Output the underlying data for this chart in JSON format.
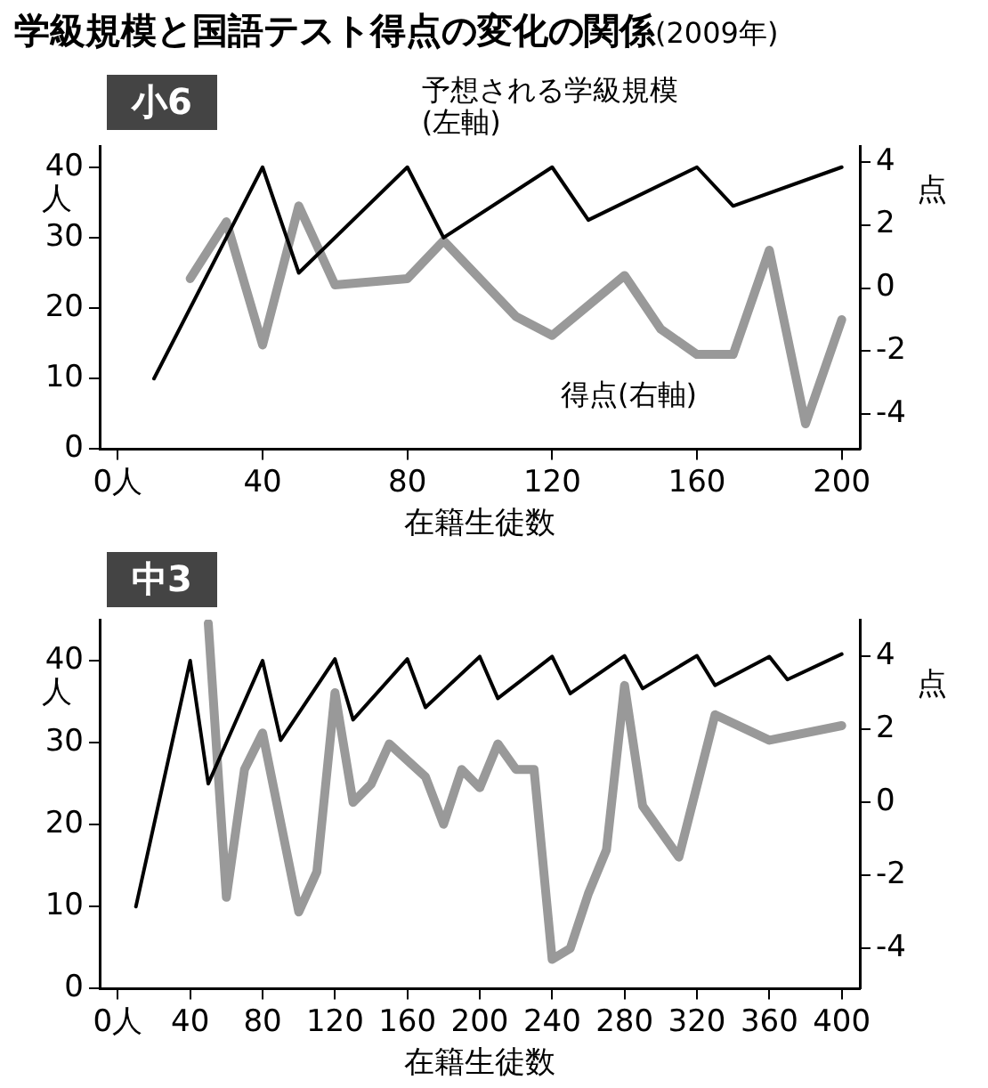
{
  "chart_data": [
    {
      "type": "line",
      "title": "学級規模と国語テスト得点の変化の関係",
      "subtitle": "(2009年)",
      "annotations": [
        "小6"
      ],
      "xlabel": "在籍生徒数",
      "ylabel": "人",
      "y2label": "点",
      "xlim": [
        -5,
        205
      ],
      "xticks": [
        {
          "value": 0,
          "label": "0人"
        },
        40,
        80,
        120,
        160,
        200
      ],
      "ylim": [
        0,
        43
      ],
      "yticks": [
        0,
        10,
        20,
        30,
        40
      ],
      "y2lim": [
        -5.1,
        4.5
      ],
      "y2ticks": [
        -4,
        -2,
        0,
        2,
        4
      ],
      "grid": false,
      "legend": false,
      "marker": "none",
      "line_style": "solid",
      "series": [
        {
          "name": "予想される学級規模(左軸)",
          "color": "#000000",
          "x": [
            10,
            40,
            50,
            80,
            90,
            120,
            130,
            160,
            170,
            200
          ],
          "values": [
            10,
            40,
            25,
            40,
            30,
            40,
            32.5,
            40,
            34.5,
            40
          ]
        },
        {
          "name": "得点(右軸)",
          "color": "#999999",
          "axis": "y2",
          "x": [
            20,
            30,
            40,
            50,
            60,
            80,
            90,
            110,
            120,
            140,
            150,
            160,
            170,
            180,
            190,
            200
          ],
          "values": [
            0.3,
            2.1,
            -1.8,
            2.6,
            0.1,
            0.3,
            1.5,
            -0.9,
            -1.5,
            0.4,
            -1.3,
            -2.1,
            -2.1,
            1.2,
            -4.3,
            -1.0
          ]
        }
      ]
    },
    {
      "type": "line",
      "title": "中3",
      "xlabel": "在籍生徒数",
      "ylabel": "人",
      "y2label": "点",
      "xlim": [
        -10,
        410
      ],
      "xticks": [
        {
          "value": 0,
          "label": "0人"
        },
        40,
        80,
        120,
        160,
        200,
        240,
        280,
        320,
        360,
        400
      ],
      "ylim": [
        0,
        45
      ],
      "yticks": [
        0,
        10,
        20,
        30,
        40
      ],
      "y2lim": [
        -5.1,
        5
      ],
      "y2ticks": [
        -4,
        -2,
        0,
        2,
        4
      ],
      "grid": false,
      "legend": false,
      "marker": "none",
      "line_style": "solid",
      "series": [
        {
          "color": "#000000",
          "x": [
            10,
            40,
            50,
            80,
            90,
            120,
            130,
            160,
            170,
            200,
            210,
            240,
            250,
            280,
            290,
            320,
            330,
            360,
            370,
            400
          ],
          "values": [
            10,
            40,
            25,
            40,
            30.3,
            40.2,
            32.8,
            40.2,
            34.3,
            40.5,
            35.4,
            40.5,
            36,
            40.6,
            36.6,
            40.6,
            37,
            40.5,
            37.7,
            40.8
          ]
        },
        {
          "color": "#999999",
          "axis": "y2",
          "x": [
            50,
            60,
            70,
            80,
            100,
            110,
            120,
            130,
            140,
            150,
            170,
            180,
            190,
            200,
            210,
            220,
            230,
            240,
            250,
            260,
            270,
            280,
            290,
            310,
            330,
            360,
            400
          ],
          "values": [
            4.9,
            -2.6,
            0.9,
            1.9,
            -3.0,
            -1.9,
            3.0,
            0,
            0.5,
            1.6,
            0.7,
            -0.6,
            0.9,
            0.4,
            1.6,
            0.9,
            0.9,
            -4.3,
            -4.0,
            -2.5,
            -1.3,
            3.2,
            -0.1,
            -1.5,
            2.4,
            1.7,
            2.1
          ]
        }
      ]
    }
  ]
}
